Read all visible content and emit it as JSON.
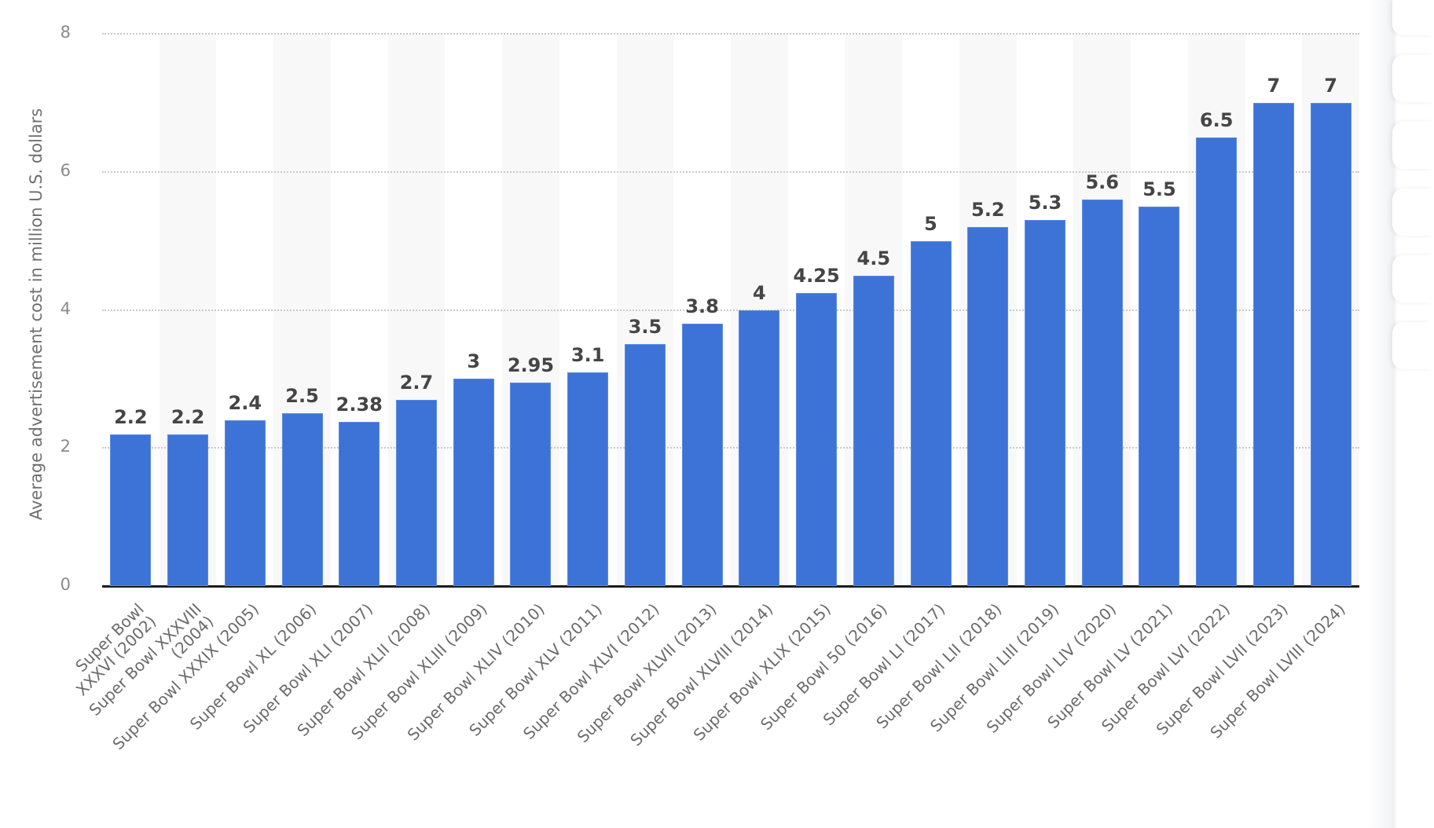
{
  "chart_data": {
    "type": "bar",
    "title": "",
    "xlabel": "",
    "ylabel": "Average advertisement cost in million U.S. dollars",
    "ylim": [
      0,
      8
    ],
    "yticks": [
      0,
      2,
      4,
      6,
      8
    ],
    "grid": true,
    "legend": null,
    "bar_color": "#3d73d6",
    "categories": [
      "Super Bowl\nXXXVI (2002)",
      "Super Bowl XXXVIII\n(2004)",
      "Super Bowl XXXIX (2005)",
      "Super Bowl XL (2006)",
      "Super Bowl XLI (2007)",
      "Super Bowl XLII (2008)",
      "Super Bowl XLIII (2009)",
      "Super Bowl XLIV (2010)",
      "Super Bowl XLV (2011)",
      "Super Bowl XLVI (2012)",
      "Super Bowl XLVII (2013)",
      "Super Bowl XLVIII (2014)",
      "Super Bowl XLIX (2015)",
      "Super Bowl 50 (2016)",
      "Super Bowl LI (2017)",
      "Super Bowl LII (2018)",
      "Super Bowl LIII (2019)",
      "Super Bowl LIV (2020)",
      "Super Bowl LV (2021)",
      "Super Bowl LVI (2022)",
      "Super Bowl LVII (2023)",
      "Super Bowl LVIII (2024)"
    ],
    "values": [
      2.2,
      2.2,
      2.4,
      2.5,
      2.38,
      2.7,
      3,
      2.95,
      3.1,
      3.5,
      3.8,
      4,
      4.25,
      4.5,
      5,
      5.2,
      5.3,
      5.6,
      5.5,
      6.5,
      7,
      7
    ],
    "value_labels": [
      "2.2",
      "2.2",
      "2.4",
      "2.5",
      "2.38",
      "2.7",
      "3",
      "2.95",
      "3.1",
      "3.5",
      "3.8",
      "4",
      "4.25",
      "4.5",
      "5",
      "5.2",
      "5.3",
      "5.6",
      "5.5",
      "6.5",
      "7",
      "7"
    ]
  },
  "sidebar": {
    "tabs": 6
  }
}
